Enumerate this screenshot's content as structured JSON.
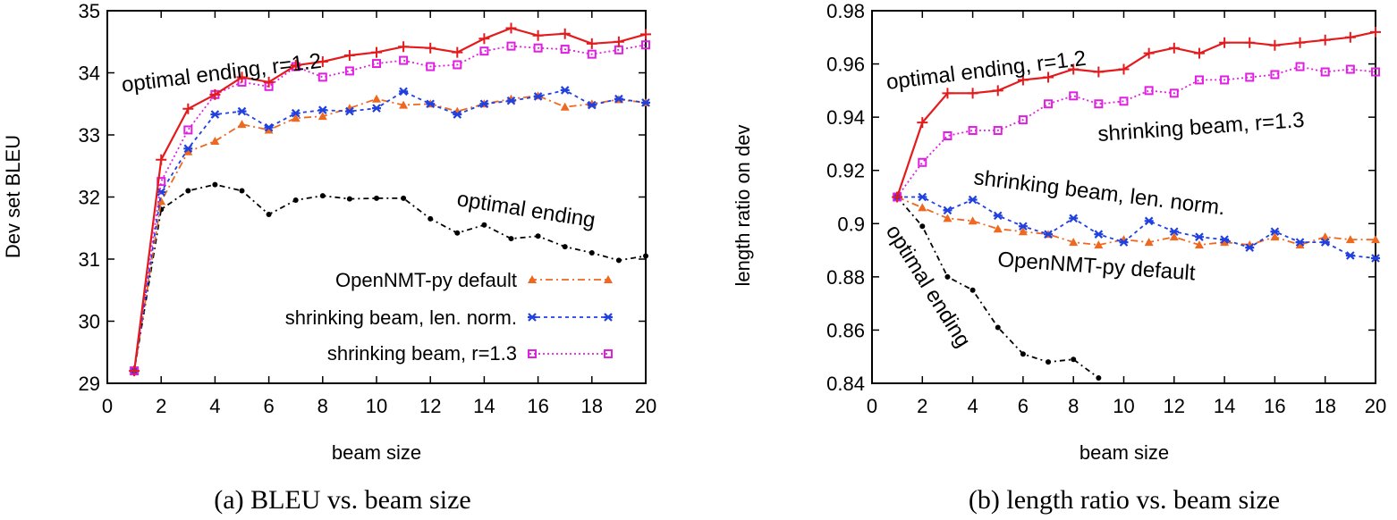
{
  "chart_data": [
    {
      "type": "line",
      "caption": "(a) BLEU vs. beam size",
      "xlabel": "beam size",
      "ylabel": "Dev set BLEU",
      "xlim": [
        0,
        20
      ],
      "ylim": [
        29,
        35
      ],
      "xticks": [
        0,
        2,
        4,
        6,
        8,
        10,
        12,
        14,
        16,
        18,
        20
      ],
      "yticks": [
        29,
        30,
        31,
        32,
        33,
        34,
        35
      ],
      "ytick_labels": [
        "29",
        "30",
        "31",
        "32",
        "33",
        "34",
        "35"
      ],
      "legend": [
        "OpenNMT-py default",
        "shrinking beam, len. norm.",
        "shrinking beam, r=1.3"
      ],
      "annotations": [
        "optimal ending, r=1.2",
        "optimal ending"
      ],
      "x": [
        1,
        2,
        3,
        4,
        5,
        6,
        7,
        8,
        9,
        10,
        11,
        12,
        13,
        14,
        15,
        16,
        17,
        18,
        19,
        20
      ],
      "series": [
        {
          "name": "optimal ending, r=1.2",
          "color": "#e41a1c",
          "values": [
            29.2,
            32.6,
            33.42,
            33.65,
            33.93,
            33.85,
            34.12,
            34.18,
            34.28,
            34.33,
            34.42,
            34.4,
            34.33,
            34.55,
            34.72,
            34.6,
            34.63,
            34.47,
            34.5,
            34.62
          ]
        },
        {
          "name": "shrinking beam, r=1.3",
          "color": "#e020e0",
          "values": [
            29.2,
            32.25,
            33.08,
            33.65,
            33.85,
            33.78,
            34.1,
            33.93,
            34.03,
            34.15,
            34.2,
            34.1,
            34.13,
            34.35,
            34.43,
            34.4,
            34.38,
            34.3,
            34.37,
            34.45
          ]
        },
        {
          "name": "shrinking beam, len. norm.",
          "color": "#2040e0",
          "values": [
            29.2,
            32.08,
            32.78,
            33.33,
            33.38,
            33.12,
            33.35,
            33.4,
            33.38,
            33.43,
            33.7,
            33.5,
            33.33,
            33.5,
            33.55,
            33.62,
            33.72,
            33.48,
            33.58,
            33.52
          ]
        },
        {
          "name": "OpenNMT-py default",
          "color": "#ee6820",
          "values": [
            29.2,
            31.93,
            32.73,
            32.9,
            33.17,
            33.08,
            33.27,
            33.3,
            33.43,
            33.58,
            33.48,
            33.5,
            33.38,
            33.5,
            33.58,
            33.63,
            33.45,
            33.5,
            33.57,
            33.52
          ]
        },
        {
          "name": "optimal ending",
          "color": "#000000",
          "values": [
            29.2,
            31.8,
            32.1,
            32.2,
            32.1,
            31.72,
            31.95,
            32.02,
            31.97,
            31.98,
            31.98,
            31.65,
            31.42,
            31.55,
            31.33,
            31.37,
            31.2,
            31.1,
            30.98,
            31.05
          ]
        }
      ]
    },
    {
      "type": "line",
      "caption": "(b) length ratio vs. beam size",
      "xlabel": "beam size",
      "ylabel": "length ratio on dev",
      "xlim": [
        0,
        20
      ],
      "ylim": [
        0.84,
        0.98
      ],
      "xticks": [
        0,
        2,
        4,
        6,
        8,
        10,
        12,
        14,
        16,
        18,
        20
      ],
      "yticks": [
        0.84,
        0.86,
        0.88,
        0.9,
        0.92,
        0.94,
        0.96,
        0.98
      ],
      "ytick_labels": [
        "0.84",
        "0.86",
        "0.88",
        "0.9",
        "0.92",
        "0.94",
        "0.96",
        "0.98"
      ],
      "annotations": [
        "optimal ending, r=1.2",
        "shrinking beam, r=1.3",
        "shrinking beam, len. norm.",
        "OpenNMT-py default",
        "optimal ending"
      ],
      "x": [
        1,
        2,
        3,
        4,
        5,
        6,
        7,
        8,
        9,
        10,
        11,
        12,
        13,
        14,
        15,
        16,
        17,
        18,
        19,
        20
      ],
      "series": [
        {
          "name": "optimal ending, r=1.2",
          "color": "#e41a1c",
          "values": [
            0.91,
            0.938,
            0.949,
            0.949,
            0.95,
            0.954,
            0.955,
            0.958,
            0.957,
            0.958,
            0.964,
            0.966,
            0.964,
            0.968,
            0.968,
            0.967,
            0.968,
            0.969,
            0.97,
            0.972
          ]
        },
        {
          "name": "shrinking beam, r=1.3",
          "color": "#e020e0",
          "values": [
            0.91,
            0.923,
            0.933,
            0.935,
            0.935,
            0.939,
            0.945,
            0.948,
            0.945,
            0.946,
            0.95,
            0.949,
            0.954,
            0.954,
            0.955,
            0.956,
            0.959,
            0.957,
            0.958,
            0.957
          ]
        },
        {
          "name": "shrinking beam, len. norm.",
          "color": "#2040e0",
          "values": [
            0.91,
            0.91,
            0.905,
            0.909,
            0.903,
            0.899,
            0.896,
            0.902,
            0.896,
            0.893,
            0.901,
            0.897,
            0.895,
            0.894,
            0.891,
            0.897,
            0.893,
            0.893,
            0.888,
            0.887
          ]
        },
        {
          "name": "OpenNMT-py default",
          "color": "#ee6820",
          "values": [
            0.91,
            0.906,
            0.902,
            0.901,
            0.898,
            0.897,
            0.896,
            0.893,
            0.892,
            0.894,
            0.893,
            0.895,
            0.892,
            0.893,
            0.892,
            0.895,
            0.892,
            0.895,
            0.894,
            0.894
          ]
        },
        {
          "name": "optimal ending",
          "color": "#000000",
          "x": [
            1,
            2,
            3,
            4,
            5,
            6,
            7,
            8,
            9
          ],
          "values": [
            0.91,
            0.899,
            0.88,
            0.875,
            0.861,
            0.851,
            0.848,
            0.849,
            0.842
          ]
        }
      ]
    }
  ]
}
